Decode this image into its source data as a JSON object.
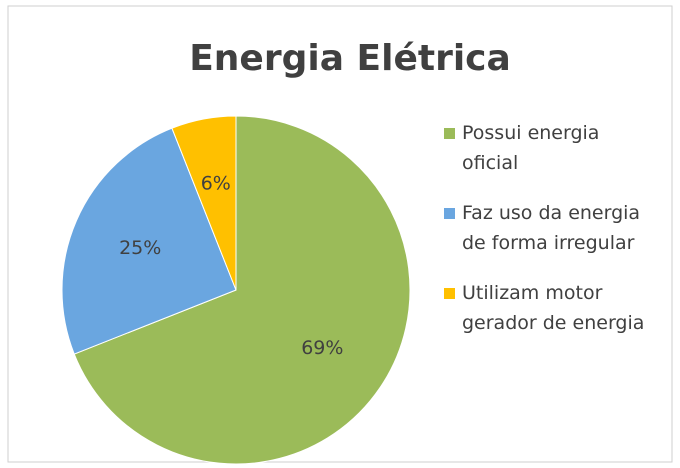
{
  "chart_data": {
    "type": "pie",
    "title": "Energia Elétrica",
    "categories": [
      "Possui energia oficial",
      "Faz uso da energia de forma irregular",
      "Utilizam motor gerador de energia"
    ],
    "values": [
      69,
      25,
      6
    ],
    "value_labels": [
      "69%",
      "25%",
      "6%"
    ],
    "colors": [
      "#9bbb59",
      "#6aa6e0",
      "#ffc000"
    ],
    "legend": "right"
  }
}
